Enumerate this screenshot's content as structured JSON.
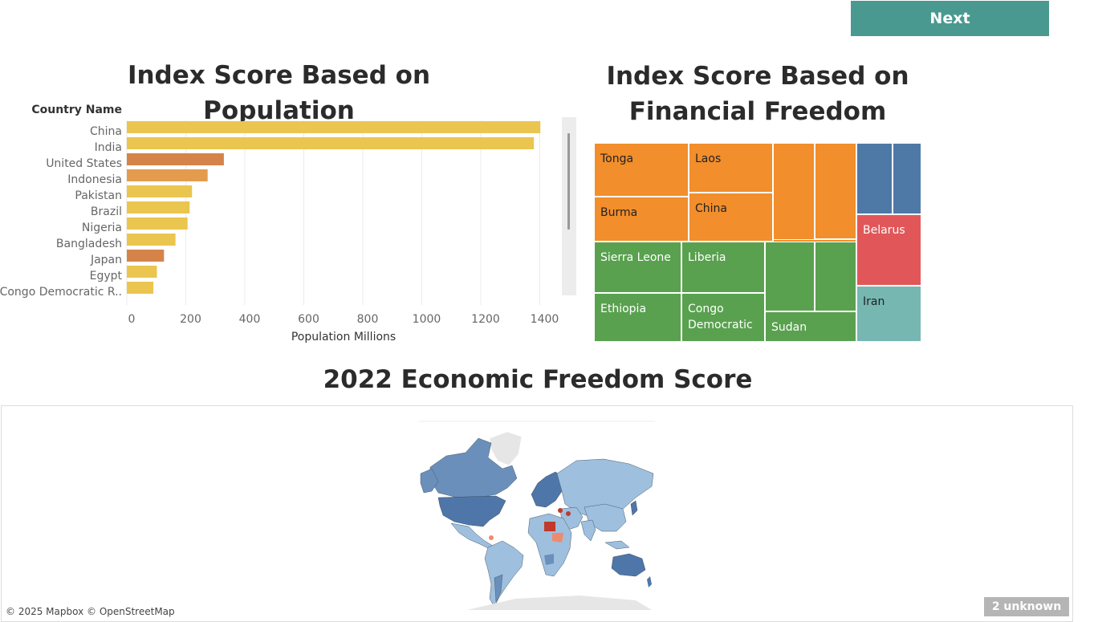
{
  "buttons": {
    "next": "Next"
  },
  "titles": {
    "population": "Index Score Based on Population",
    "financial_line1": "Index Score Based on",
    "financial_line2": "Financial Freedom",
    "map": "2022 Economic Freedom Score"
  },
  "map": {
    "attribution": "© 2025 Mapbox © OpenStreetMap",
    "unknown_badge": "2 unknown"
  },
  "colors": {
    "next": "#4a9991",
    "yellow": "#eac54f",
    "orange_dark": "#d6834a",
    "orange_mid": "#e39c4e"
  },
  "chart_data": [
    {
      "type": "bar",
      "orientation": "horizontal",
      "title": "Index Score Based on Population",
      "row_header": "Country Name",
      "xlabel": "Population Millions",
      "xlim": [
        0,
        1500
      ],
      "xticks": [
        0,
        200,
        400,
        600,
        800,
        1000,
        1200,
        1400
      ],
      "grid": true,
      "categories": [
        "China",
        "India",
        "United States",
        "Indonesia",
        "Pakistan",
        "Brazil",
        "Nigeria",
        "Bangladesh",
        "Japan",
        "Egypt",
        "Congo Democratic R.."
      ],
      "values": [
        1402,
        1380,
        329,
        274,
        221,
        213,
        206,
        165,
        126,
        102,
        90
      ],
      "bar_colors": [
        "#eac54f",
        "#eac54f",
        "#d6834a",
        "#e39c4e",
        "#eac54f",
        "#eac54f",
        "#eac54f",
        "#eac54f",
        "#d6834a",
        "#eac54f",
        "#eac54f"
      ]
    },
    {
      "type": "treemap",
      "title": "Index Score Based on Financial Freedom",
      "cells": [
        {
          "label": "Tonga",
          "color": "#f28e2b",
          "text": "#222"
        },
        {
          "label": "Laos",
          "color": "#f28e2b",
          "text": "#222"
        },
        {
          "label": "Burma",
          "color": "#f28e2b",
          "text": "#222"
        },
        {
          "label": "China",
          "color": "#f28e2b",
          "text": "#222"
        },
        {
          "label": "",
          "color": "#f28e2b",
          "text": "#222"
        },
        {
          "label": "",
          "color": "#f28e2b",
          "text": "#222"
        },
        {
          "label": "",
          "color": "#f28e2b",
          "text": "#222"
        },
        {
          "label": "",
          "color": "#4e79a7",
          "text": "#fff"
        },
        {
          "label": "",
          "color": "#4e79a7",
          "text": "#fff"
        },
        {
          "label": "Belarus",
          "color": "#e15759",
          "text": "#fff"
        },
        {
          "label": "Iran",
          "color": "#76b7b2",
          "text": "#222"
        },
        {
          "label": "Sierra Leone",
          "color": "#59a14f",
          "text": "#fff"
        },
        {
          "label": "Liberia",
          "color": "#59a14f",
          "text": "#fff"
        },
        {
          "label": "Ethiopia",
          "color": "#59a14f",
          "text": "#fff"
        },
        {
          "label": "Congo Democratic",
          "color": "#59a14f",
          "text": "#fff"
        },
        {
          "label": "",
          "color": "#59a14f",
          "text": "#fff"
        },
        {
          "label": "",
          "color": "#59a14f",
          "text": "#fff"
        },
        {
          "label": "Sudan",
          "color": "#59a14f",
          "text": "#fff"
        }
      ]
    }
  ]
}
